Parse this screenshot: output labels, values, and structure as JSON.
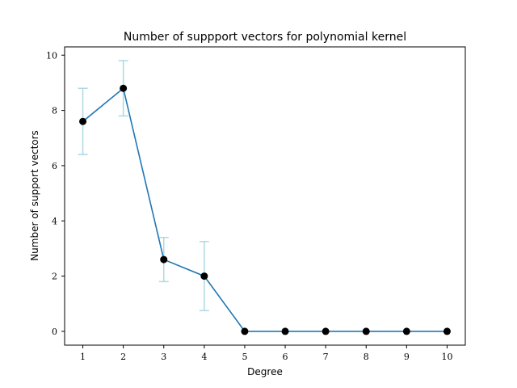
{
  "chart_data": {
    "type": "line",
    "title": "Number of suppport vectors for polynomial kernel",
    "xlabel": "Degree",
    "ylabel": "Number of support vectors",
    "x": [
      1,
      2,
      3,
      4,
      5,
      6,
      7,
      8,
      9,
      10
    ],
    "series": [
      {
        "values": [
          7.6,
          8.8,
          2.6,
          2.0,
          0,
          0,
          0,
          0,
          0,
          0
        ],
        "error_low": [
          6.4,
          7.8,
          1.8,
          0.75,
          0,
          0,
          0,
          0,
          0,
          0
        ],
        "error_high": [
          8.8,
          9.8,
          3.4,
          3.25,
          0,
          0,
          0,
          0,
          0,
          0
        ],
        "color": "#1f77b4",
        "marker_color": "#000000",
        "error_color": "#add8e6"
      }
    ],
    "xlim": [
      0.55,
      10.45
    ],
    "ylim": [
      -0.5,
      10.3
    ],
    "xticks": [
      "1",
      "2",
      "3",
      "4",
      "5",
      "6",
      "7",
      "8",
      "9",
      "10"
    ],
    "yticks": [
      "0",
      "2",
      "4",
      "6",
      "8",
      "10"
    ],
    "grid": false,
    "legend": "none"
  }
}
